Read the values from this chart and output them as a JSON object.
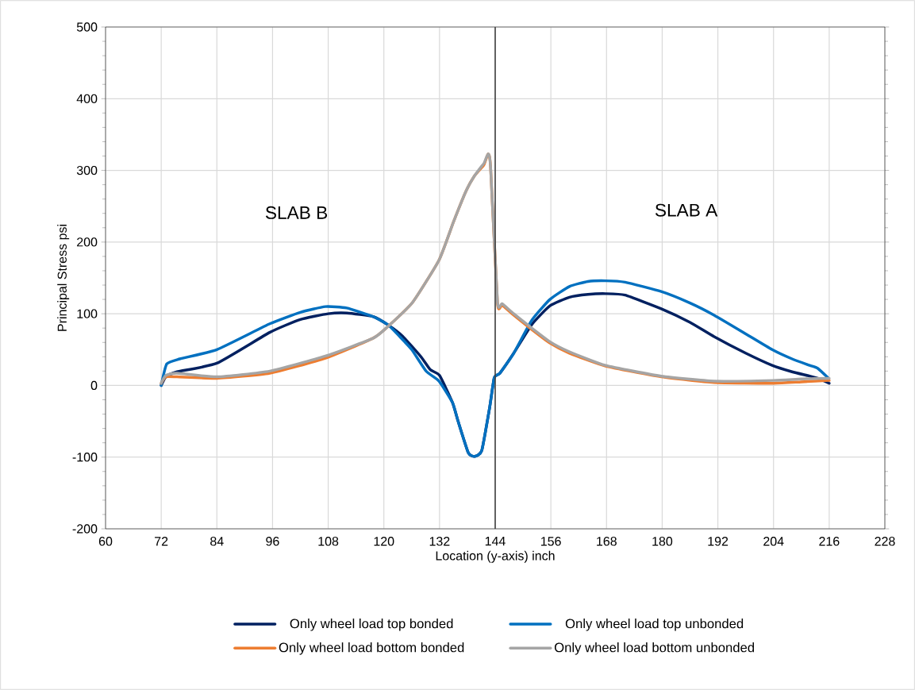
{
  "chart_data": {
    "type": "line",
    "xlabel": "Location (y-axis) inch",
    "ylabel": "Principal Stress psi",
    "xlim": [
      60,
      228
    ],
    "xticks": [
      60,
      72,
      84,
      96,
      108,
      120,
      132,
      144,
      156,
      168,
      180,
      192,
      204,
      216,
      228
    ],
    "ylim": [
      -200,
      500
    ],
    "yticks": [
      -200,
      -100,
      0,
      100,
      200,
      300,
      400,
      500
    ],
    "grid": true,
    "legend": "bottom",
    "marker": "none",
    "line_style": "solid",
    "annotations": [
      "SLAB B",
      "SLAB A"
    ],
    "ref_lines": [
      {
        "axis": "x",
        "value": 144,
        "color": "#404040"
      }
    ],
    "series": [
      {
        "name": "Only wheel load top bonded",
        "color": "#002060",
        "x": [
          72,
          73,
          75.4,
          84,
          95.4,
          102,
          108,
          112,
          117.7,
          121,
          124,
          128,
          130,
          132,
          134.8,
          136,
          138.2,
          139.6,
          141.1,
          142.8,
          143.8,
          145,
          148,
          151.9,
          155.8,
          160,
          164,
          167.8,
          172,
          179.8,
          186,
          191.2,
          198,
          203.7,
          208,
          211.8,
          214,
          216
        ],
        "values": [
          0,
          12,
          19,
          31,
          74,
          92,
          100,
          101,
          96,
          84,
          69,
          40,
          22,
          14,
          -24,
          -50,
          -94,
          -99,
          -91,
          -31,
          11,
          17,
          45,
          85,
          111,
          123,
          127,
          128,
          126,
          107,
          88,
          68,
          45,
          28,
          19,
          13,
          9,
          3
        ]
      },
      {
        "name": "Only wheel load top unbonded",
        "color": "#0070c0",
        "x": [
          72,
          73.2,
          76,
          84,
          95.4,
          102,
          107.4,
          112,
          117.7,
          121,
          123.3,
          126,
          129.1,
          131.9,
          134.8,
          136,
          138.2,
          139.6,
          141.1,
          142.8,
          143.8,
          145,
          148,
          151.9,
          155.8,
          160,
          164,
          167.8,
          172,
          179.8,
          186,
          191.2,
          198,
          203.7,
          208,
          211.8,
          213.5,
          215.7
        ],
        "values": [
          0,
          30,
          37,
          50,
          86,
          102,
          110,
          108,
          96,
          84,
          69,
          50,
          20,
          6,
          -24,
          -50,
          -94,
          -99,
          -91,
          -31,
          11,
          17,
          45,
          91,
          120,
          138,
          145,
          146,
          144,
          131,
          115,
          98,
          72,
          50,
          37,
          28,
          24,
          11
        ]
      },
      {
        "name": "Only wheel load bottom bonded",
        "color": "#ed7d31",
        "x": [
          72,
          73,
          75.4,
          84,
          95.4,
          107.4,
          117.7,
          121,
          126.2,
          131.9,
          135,
          137.7,
          139.5,
          141.1,
          141.6,
          142.5,
          143,
          144.5,
          145.5,
          148,
          151.3,
          155.8,
          160,
          167.8,
          179.8,
          191.2,
          204,
          210,
          216
        ],
        "values": [
          3,
          12,
          12,
          10,
          17,
          38,
          66,
          83,
          116,
          175,
          228,
          271,
          292,
          304,
          308,
          323,
          305,
          114,
          112,
          98,
          81,
          59,
          45,
          27,
          12,
          4,
          3,
          5,
          7
        ]
      },
      {
        "name": "Only wheel load bottom unbonded",
        "color": "#a5a5a5",
        "x": [
          72,
          73,
          75.4,
          84,
          95.4,
          107.4,
          117.7,
          121,
          126.2,
          131.9,
          135,
          137.7,
          139.5,
          141.1,
          141.6,
          142.5,
          143,
          144.5,
          145.5,
          148,
          151.3,
          155.8,
          160,
          167.8,
          179.8,
          191.2,
          204,
          210,
          216
        ],
        "values": [
          3,
          14,
          17,
          12,
          20,
          41,
          66,
          83,
          116,
          175,
          228,
          271,
          292,
          306,
          310,
          323,
          305,
          116,
          114,
          100,
          83,
          61,
          47,
          28,
          13,
          6,
          7,
          9,
          10
        ]
      }
    ]
  }
}
